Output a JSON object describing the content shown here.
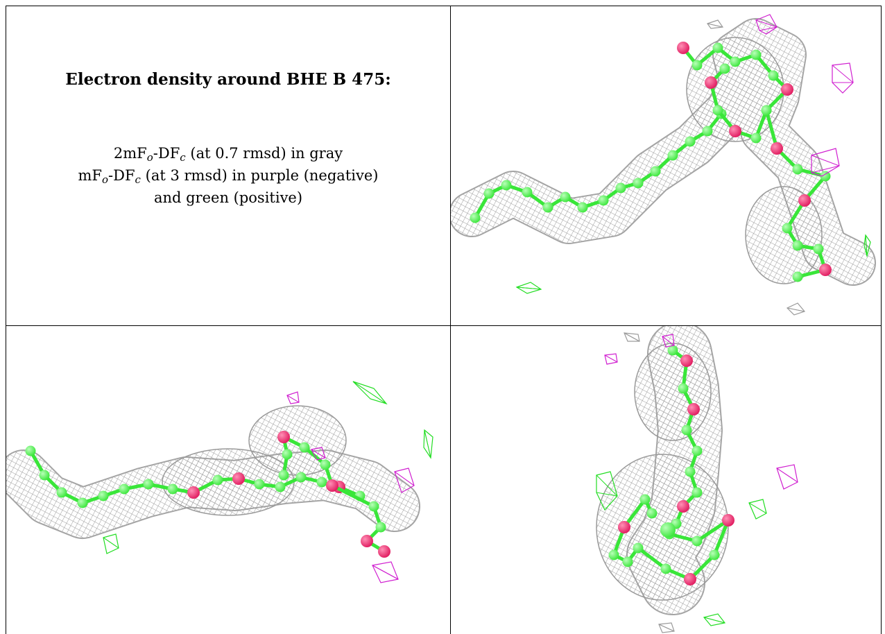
{
  "caption": {
    "title": "Electron density around BHE B 475:",
    "line1": {
      "pre": "2mF",
      "s1": "o",
      "mid": "-DF",
      "s2": "c",
      "post": " (at 0.7 rmsd) in gray"
    },
    "line2": {
      "pre": "mF",
      "s1": "o",
      "mid": "-DF",
      "s2": "c",
      "post": " (at 3 rmsd) in purple (negative)"
    },
    "line3": "and green (positive)"
  },
  "colors": {
    "mesh": "#9a9a9a",
    "carbon": "#39e639",
    "oxygen": "#e0195e",
    "negative": "#d01ed0",
    "positive": "#22dd22"
  },
  "panels": {
    "top_right": "electron-density-view-1",
    "bottom_left": "electron-density-view-2",
    "bottom_right": "electron-density-view-3"
  }
}
